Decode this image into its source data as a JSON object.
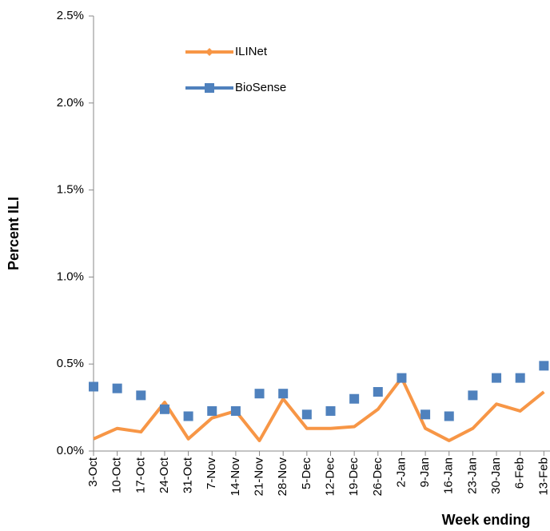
{
  "chart_data": {
    "type": "line",
    "categories": [
      "3-Oct",
      "10-Oct",
      "17-Oct",
      "24-Oct",
      "31-Oct",
      "7-Nov",
      "14-Nov",
      "21-Nov",
      "28-Nov",
      "5-Dec",
      "12-Dec",
      "19-Dec",
      "26-Dec",
      "2-Jan",
      "9-Jan",
      "16-Jan",
      "23-Jan",
      "30-Jan",
      "6-Feb",
      "13-Feb"
    ],
    "series": [
      {
        "name": "ILINet",
        "color": "#f79646",
        "marker": "line",
        "values": [
          0.07,
          0.13,
          0.11,
          0.28,
          0.07,
          0.19,
          0.23,
          0.06,
          0.3,
          0.13,
          0.13,
          0.14,
          0.24,
          0.42,
          0.13,
          0.06,
          0.13,
          0.27,
          0.23,
          0.34
        ]
      },
      {
        "name": "BioSense",
        "color": "#4f81bd",
        "marker": "square",
        "values": [
          0.37,
          0.36,
          0.32,
          0.24,
          0.2,
          0.23,
          0.23,
          0.33,
          0.33,
          0.21,
          0.23,
          0.3,
          0.34,
          0.42,
          0.21,
          0.2,
          0.32,
          0.42,
          0.42,
          0.49
        ]
      }
    ],
    "ylabel": "Percent ILI",
    "xlabel": "Week ending",
    "ylim": [
      0,
      2.5
    ],
    "yticks": [
      {
        "value": 0,
        "label": "0.0%"
      },
      {
        "value": 0.5,
        "label": "0.5%"
      },
      {
        "value": 1.0,
        "label": "1.0%"
      },
      {
        "value": 1.5,
        "label": "1.5%"
      },
      {
        "value": 2.0,
        "label": "2.0%"
      },
      {
        "value": 2.5,
        "label": "2.5%"
      }
    ],
    "legend": "upper left"
  }
}
